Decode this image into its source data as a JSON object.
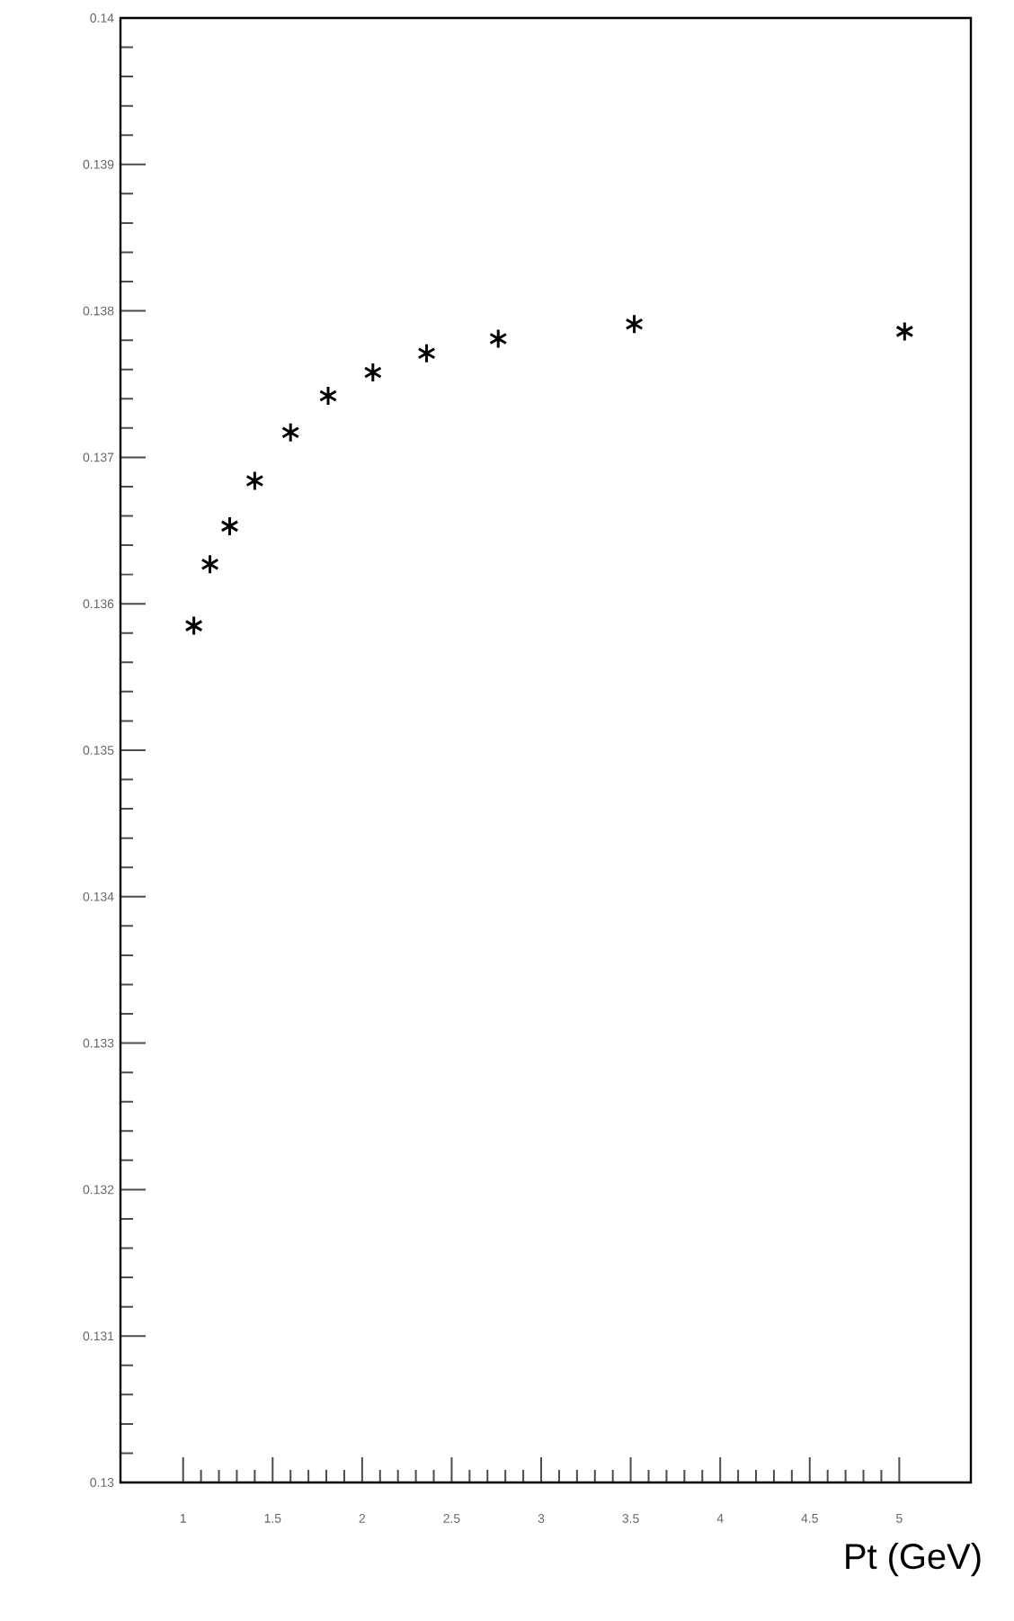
{
  "chart_data": {
    "type": "scatter",
    "xlabel": "Pt (GeV)",
    "x": [
      1.06,
      1.15,
      1.26,
      1.4,
      1.6,
      1.81,
      2.06,
      2.36,
      2.76,
      3.52,
      5.03
    ],
    "values": [
      0.13585,
      0.13627,
      0.13653,
      0.13684,
      0.13717,
      0.13742,
      0.13758,
      0.13771,
      0.13781,
      0.13791,
      0.13786
    ],
    "color": "#000000",
    "marker": "cross",
    "xlim": [
      0.65,
      5.4
    ],
    "ylim": [
      0.13,
      0.14
    ],
    "xticks": [
      1,
      1.5,
      2,
      2.5,
      3,
      3.5,
      4,
      4.5,
      5
    ],
    "yticks": [
      0.13,
      0.131,
      0.132,
      0.133,
      0.134,
      0.135,
      0.136,
      0.137,
      0.138,
      0.139,
      0.14
    ]
  }
}
